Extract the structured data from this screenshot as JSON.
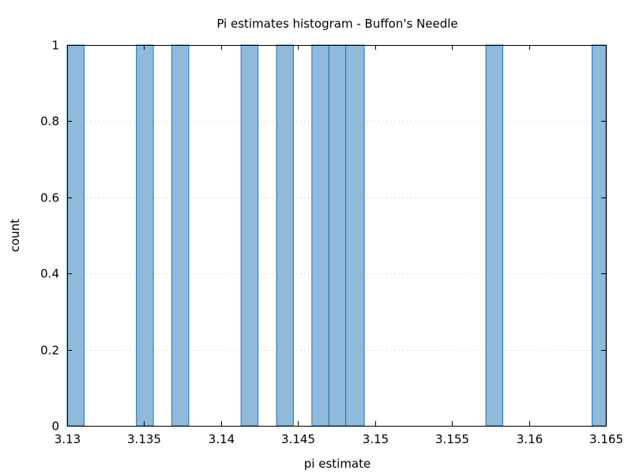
{
  "chart_data": {
    "type": "bar",
    "title": "Pi estimates histogram - Buffon's Needle",
    "xlabel": "pi estimate",
    "ylabel": "count",
    "xlim": [
      3.13,
      3.165
    ],
    "ylim": [
      0,
      1
    ],
    "xticks": [
      "3.13",
      "3.135",
      "3.14",
      "3.145",
      "3.15",
      "3.155",
      "3.16",
      "3.165"
    ],
    "yticks": [
      "0",
      "0.2",
      "0.4",
      "0.6",
      "0.8",
      "1"
    ],
    "grid": true,
    "bar_color": "#8fbad9",
    "bar_edge_color": "#1f6fb4",
    "bins": [
      {
        "start": 3.13,
        "end": 3.1311,
        "count": 1
      },
      {
        "start": 3.1345,
        "end": 3.1356,
        "count": 1
      },
      {
        "start": 3.1368,
        "end": 3.1379,
        "count": 1
      },
      {
        "start": 3.1413,
        "end": 3.1424,
        "count": 1
      },
      {
        "start": 3.1436,
        "end": 3.1447,
        "count": 1
      },
      {
        "start": 3.1459,
        "end": 3.147,
        "count": 1
      },
      {
        "start": 3.147,
        "end": 3.1481,
        "count": 1
      },
      {
        "start": 3.1481,
        "end": 3.1493,
        "count": 1
      },
      {
        "start": 3.1572,
        "end": 3.1583,
        "count": 1
      },
      {
        "start": 3.1641,
        "end": 3.165,
        "count": 1
      }
    ]
  }
}
